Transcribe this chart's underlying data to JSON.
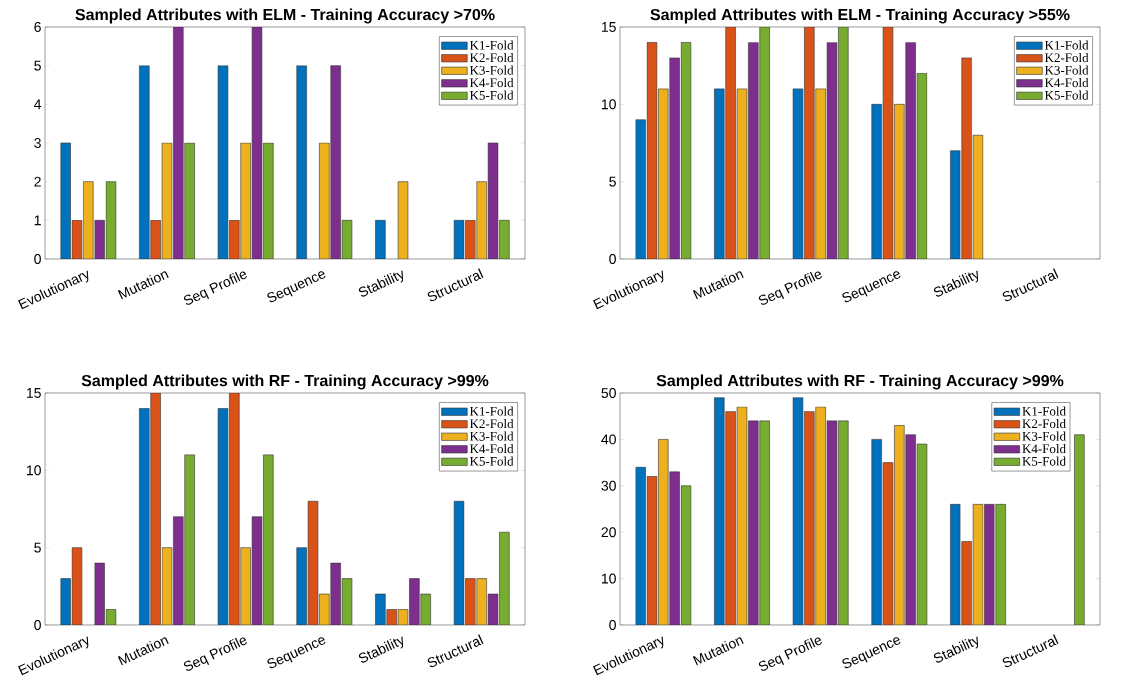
{
  "chart_data": [
    {
      "type": "bar",
      "title": "Sampled Attributes with ELM - Training Accuracy >70%",
      "categories": [
        "Evolutionary",
        "Mutation",
        "Seq Profile",
        "Sequence",
        "Stability",
        "Structural"
      ],
      "ylim": [
        0,
        6
      ],
      "yticks": [
        0,
        1,
        2,
        3,
        4,
        5,
        6
      ],
      "legend": "top right",
      "series": [
        {
          "name": "K1-Fold",
          "color": "#0072bd",
          "values": [
            3,
            5,
            5,
            5,
            1,
            1
          ]
        },
        {
          "name": "K2-Fold",
          "color": "#d95319",
          "values": [
            1,
            1,
            1,
            0,
            0,
            1
          ]
        },
        {
          "name": "K3-Fold",
          "color": "#edb120",
          "values": [
            2,
            3,
            3,
            3,
            2,
            2
          ]
        },
        {
          "name": "K4-Fold",
          "color": "#7e2f8e",
          "values": [
            1,
            6,
            6,
            5,
            0,
            3
          ]
        },
        {
          "name": "K5-Fold",
          "color": "#77ac30",
          "values": [
            2,
            3,
            3,
            1,
            0,
            1
          ]
        }
      ]
    },
    {
      "type": "bar",
      "title": "Sampled Attributes with ELM - Training Accuracy >55%",
      "categories": [
        "Evolutionary",
        "Mutation",
        "Seq Profile",
        "Sequence",
        "Stability",
        "Structural"
      ],
      "ylim": [
        0,
        15
      ],
      "yticks": [
        0,
        5,
        10,
        15
      ],
      "legend": "top right",
      "series": [
        {
          "name": "K1-Fold",
          "color": "#0072bd",
          "values": [
            9,
            11,
            11,
            10,
            7,
            null
          ]
        },
        {
          "name": "K2-Fold",
          "color": "#d95319",
          "values": [
            14,
            15,
            15,
            15,
            13,
            null
          ]
        },
        {
          "name": "K3-Fold",
          "color": "#edb120",
          "values": [
            11,
            11,
            11,
            10,
            8,
            null
          ]
        },
        {
          "name": "K4-Fold",
          "color": "#7e2f8e",
          "values": [
            13,
            14,
            14,
            14,
            null,
            null
          ]
        },
        {
          "name": "K5-Fold",
          "color": "#77ac30",
          "values": [
            14,
            15,
            15,
            12,
            null,
            null
          ]
        }
      ]
    },
    {
      "type": "bar",
      "title": "Sampled Attributes with RF - Training Accuracy >99%",
      "categories": [
        "Evolutionary",
        "Mutation",
        "Seq Profile",
        "Sequence",
        "Stability",
        "Structural"
      ],
      "ylim": [
        0,
        15
      ],
      "yticks": [
        0,
        5,
        10,
        15
      ],
      "legend": "top right",
      "series": [
        {
          "name": "K1-Fold",
          "color": "#0072bd",
          "values": [
            3,
            14,
            14,
            5,
            2,
            8
          ]
        },
        {
          "name": "K2-Fold",
          "color": "#d95319",
          "values": [
            5,
            15,
            15,
            8,
            1,
            3
          ]
        },
        {
          "name": "K3-Fold",
          "color": "#edb120",
          "values": [
            0,
            5,
            5,
            2,
            1,
            3
          ]
        },
        {
          "name": "K4-Fold",
          "color": "#7e2f8e",
          "values": [
            4,
            7,
            7,
            4,
            3,
            2
          ]
        },
        {
          "name": "K5-Fold",
          "color": "#77ac30",
          "values": [
            1,
            11,
            11,
            3,
            2,
            6
          ]
        }
      ]
    },
    {
      "type": "bar",
      "title": "Sampled Attributes with RF - Training Accuracy >99%",
      "categories": [
        "Evolutionary",
        "Mutation",
        "Seq Profile",
        "Sequence",
        "Stability",
        "Structural"
      ],
      "ylim": [
        0,
        50
      ],
      "yticks": [
        0,
        10,
        20,
        30,
        40,
        50
      ],
      "legend": "top right",
      "series": [
        {
          "name": "K1-Fold",
          "color": "#0072bd",
          "values": [
            34,
            49,
            49,
            40,
            26,
            null
          ]
        },
        {
          "name": "K2-Fold",
          "color": "#d95319",
          "values": [
            32,
            46,
            46,
            35,
            18,
            null
          ]
        },
        {
          "name": "K3-Fold",
          "color": "#edb120",
          "values": [
            40,
            47,
            47,
            43,
            26,
            null
          ]
        },
        {
          "name": "K4-Fold",
          "color": "#7e2f8e",
          "values": [
            33,
            44,
            44,
            41,
            26,
            null
          ]
        },
        {
          "name": "K5-Fold",
          "color": "#77ac30",
          "values": [
            30,
            44,
            44,
            39,
            26,
            41
          ]
        }
      ]
    }
  ]
}
